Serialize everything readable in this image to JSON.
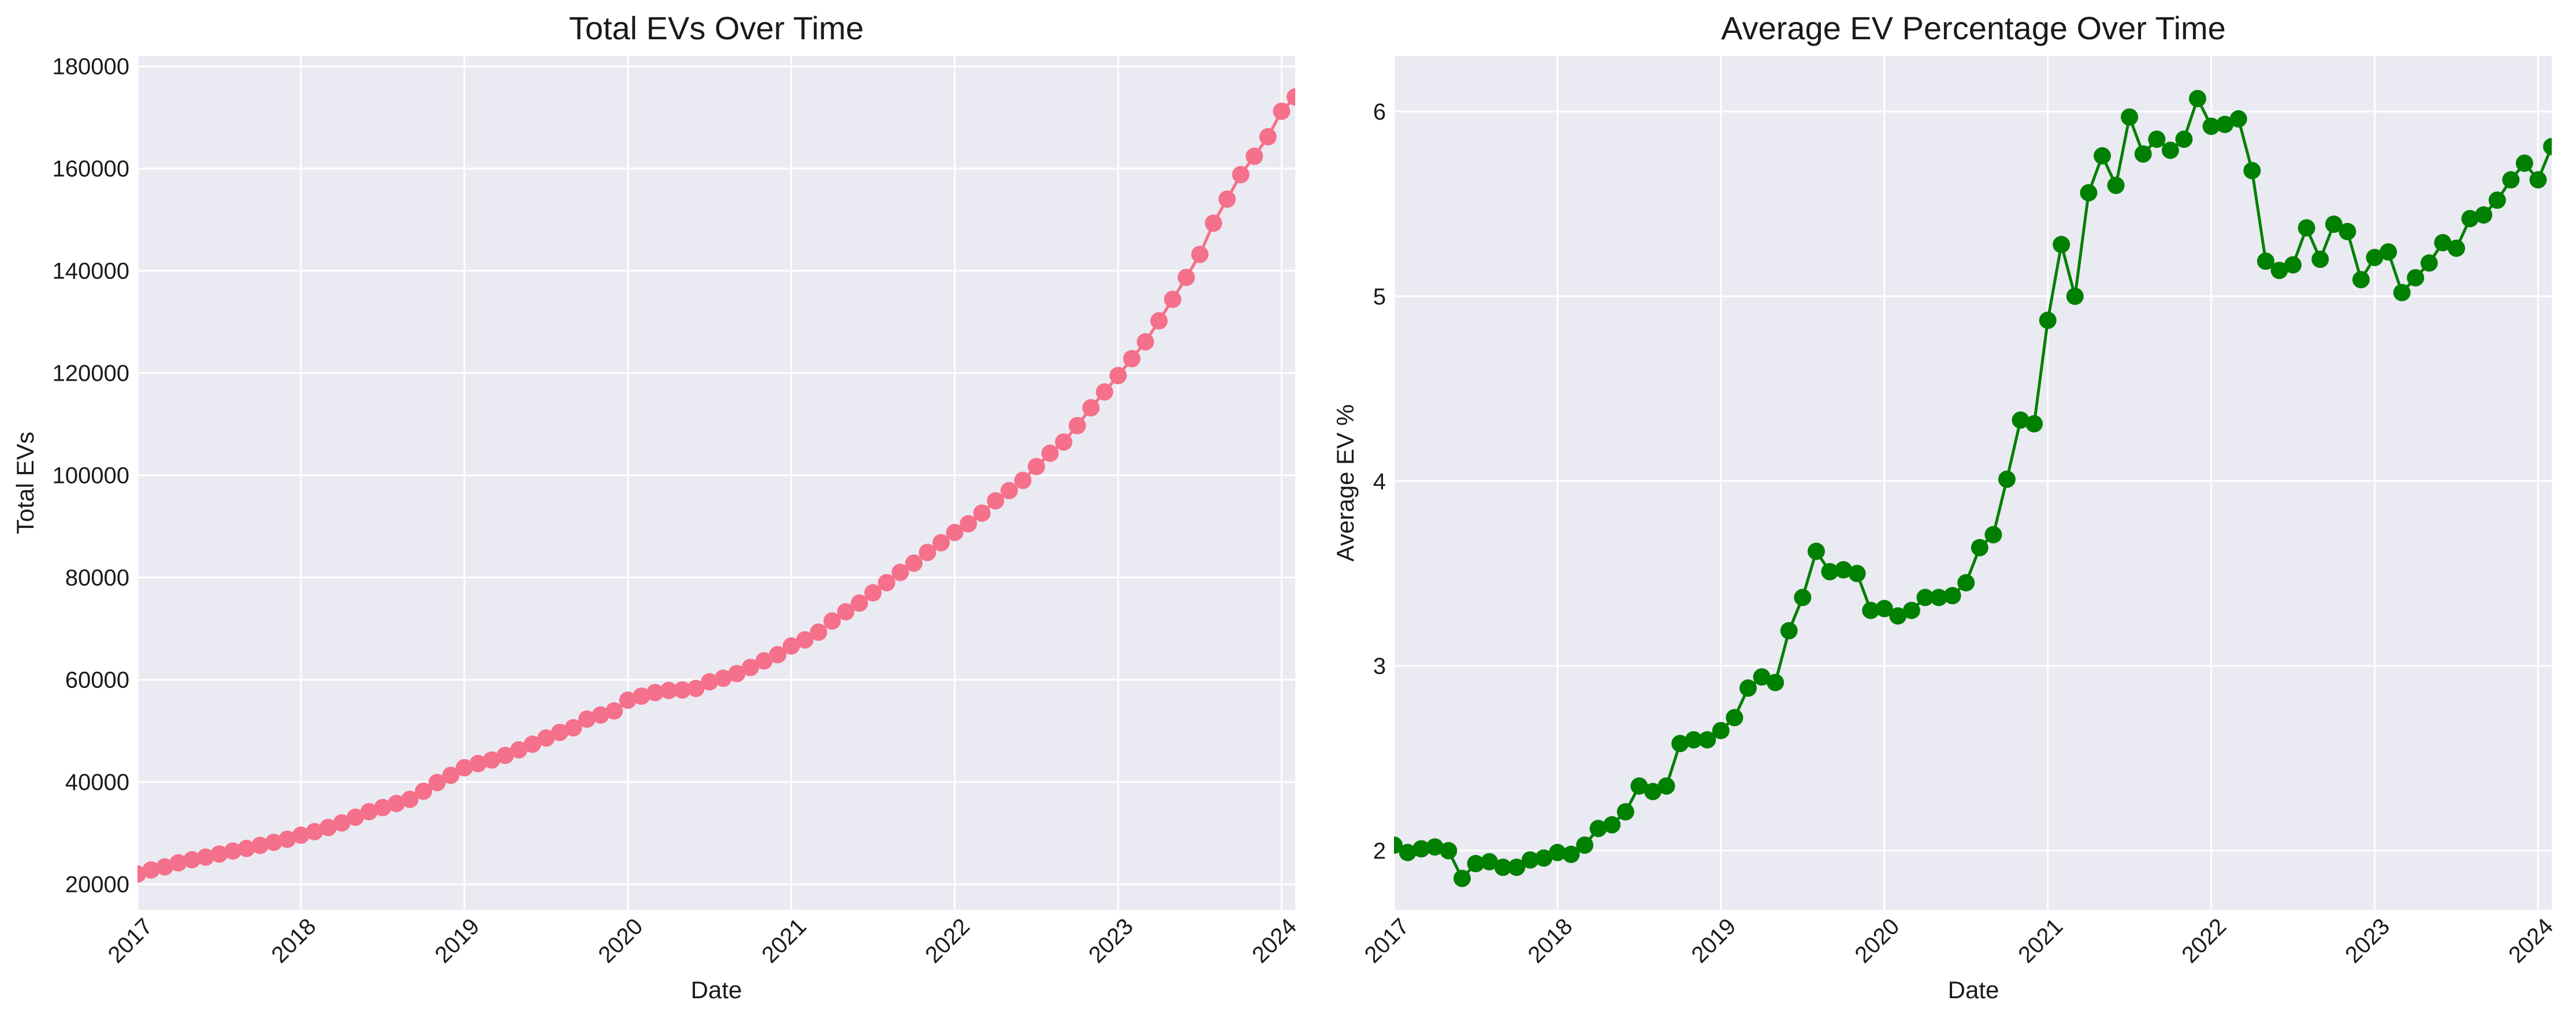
{
  "colors": {
    "figure_bg": "#ffffff",
    "plot_bg": "#eaeaf2",
    "grid": "#ffffff",
    "text": "#1a1a1a",
    "series_left": "#f5708a",
    "series_right": "#008000"
  },
  "chart_data": [
    {
      "type": "line",
      "title": "Total EVs Over Time",
      "xlabel": "Date",
      "ylabel": "Total EVs",
      "x_ticks": [
        "2017",
        "2018",
        "2019",
        "2020",
        "2021",
        "2022",
        "2023",
        "2024"
      ],
      "y_ticks": [
        "20000",
        "40000",
        "60000",
        "80000",
        "100000",
        "120000",
        "140000",
        "160000",
        "180000"
      ],
      "xlim": [
        "2017-01",
        "2024-02"
      ],
      "ylim": [
        15000,
        182000
      ],
      "grid": true,
      "marker": "circle",
      "series": [
        {
          "x": [
            "2017-01",
            "2017-02",
            "2017-03",
            "2017-04",
            "2017-05",
            "2017-06",
            "2017-07",
            "2017-08",
            "2017-09",
            "2017-10",
            "2017-11",
            "2017-12",
            "2018-01",
            "2018-02",
            "2018-03",
            "2018-04",
            "2018-05",
            "2018-06",
            "2018-07",
            "2018-08",
            "2018-09",
            "2018-10",
            "2018-11",
            "2018-12",
            "2019-01",
            "2019-02",
            "2019-03",
            "2019-04",
            "2019-05",
            "2019-06",
            "2019-07",
            "2019-08",
            "2019-09",
            "2019-10",
            "2019-11",
            "2019-12",
            "2020-01",
            "2020-02",
            "2020-03",
            "2020-04",
            "2020-05",
            "2020-06",
            "2020-07",
            "2020-08",
            "2020-09",
            "2020-10",
            "2020-11",
            "2020-12",
            "2021-01",
            "2021-02",
            "2021-03",
            "2021-04",
            "2021-05",
            "2021-06",
            "2021-07",
            "2021-08",
            "2021-09",
            "2021-10",
            "2021-11",
            "2021-12",
            "2022-01",
            "2022-02",
            "2022-03",
            "2022-04",
            "2022-05",
            "2022-06",
            "2022-07",
            "2022-08",
            "2022-09",
            "2022-10",
            "2022-11",
            "2022-12",
            "2023-01",
            "2023-02",
            "2023-03",
            "2023-04",
            "2023-05",
            "2023-06",
            "2023-07",
            "2023-08",
            "2023-09",
            "2023-10",
            "2023-11",
            "2023-12",
            "2024-01",
            "2024-02"
          ],
          "y": [
            22000,
            22800,
            23400,
            24200,
            24800,
            25300,
            25900,
            26500,
            27000,
            27600,
            28200,
            28800,
            29600,
            30300,
            31100,
            32000,
            33100,
            34200,
            35000,
            35800,
            36600,
            38200,
            39900,
            41300,
            42800,
            43600,
            44300,
            45200,
            46300,
            47400,
            48600,
            49700,
            50600,
            52300,
            53100,
            53900,
            56000,
            56800,
            57500,
            57900,
            58000,
            58300,
            59600,
            60300,
            61200,
            62400,
            63700,
            64900,
            66600,
            67800,
            69300,
            71500,
            73300,
            75000,
            77000,
            79000,
            81000,
            82800,
            84900,
            86800,
            88800,
            90500,
            92600,
            95000,
            97000,
            99000,
            101700,
            104300,
            106500,
            109700,
            113200,
            116300,
            119500,
            122800,
            126100,
            130200,
            134400,
            138700,
            143200,
            149300,
            154000,
            158800,
            162400,
            166200,
            171200,
            174000
          ]
        }
      ]
    },
    {
      "type": "line",
      "title": "Average EV Percentage Over Time",
      "xlabel": "Date",
      "ylabel": "Average EV %",
      "x_ticks": [
        "2017",
        "2018",
        "2019",
        "2020",
        "2021",
        "2022",
        "2023",
        "2024"
      ],
      "y_ticks": [
        "2",
        "3",
        "4",
        "5",
        "6"
      ],
      "xlim": [
        "2017-01",
        "2024-02"
      ],
      "ylim": [
        1.68,
        6.3
      ],
      "grid": true,
      "marker": "circle",
      "series": [
        {
          "x": [
            "2017-01",
            "2017-02",
            "2017-03",
            "2017-04",
            "2017-05",
            "2017-06",
            "2017-07",
            "2017-08",
            "2017-09",
            "2017-10",
            "2017-11",
            "2017-12",
            "2018-01",
            "2018-02",
            "2018-03",
            "2018-04",
            "2018-05",
            "2018-06",
            "2018-07",
            "2018-08",
            "2018-09",
            "2018-10",
            "2018-11",
            "2018-12",
            "2019-01",
            "2019-02",
            "2019-03",
            "2019-04",
            "2019-05",
            "2019-06",
            "2019-07",
            "2019-08",
            "2019-09",
            "2019-10",
            "2019-11",
            "2019-12",
            "2020-01",
            "2020-02",
            "2020-03",
            "2020-04",
            "2020-05",
            "2020-06",
            "2020-07",
            "2020-08",
            "2020-09",
            "2020-10",
            "2020-11",
            "2020-12",
            "2021-01",
            "2021-02",
            "2021-03",
            "2021-04",
            "2021-05",
            "2021-06",
            "2021-07",
            "2021-08",
            "2021-09",
            "2021-10",
            "2021-11",
            "2021-12",
            "2022-01",
            "2022-02",
            "2022-03",
            "2022-04",
            "2022-05",
            "2022-06",
            "2022-07",
            "2022-08",
            "2022-09",
            "2022-10",
            "2022-11",
            "2022-12",
            "2023-01",
            "2023-02",
            "2023-03",
            "2023-04",
            "2023-05",
            "2023-06",
            "2023-07",
            "2023-08",
            "2023-09",
            "2023-10",
            "2023-11",
            "2023-12",
            "2024-01",
            "2024-02"
          ],
          "y": [
            2.03,
            1.99,
            2.01,
            2.02,
            2.0,
            1.85,
            1.93,
            1.94,
            1.91,
            1.91,
            1.95,
            1.96,
            1.99,
            1.98,
            2.03,
            2.12,
            2.14,
            2.21,
            2.35,
            2.32,
            2.35,
            2.58,
            2.6,
            2.6,
            2.65,
            2.72,
            2.88,
            2.94,
            2.91,
            3.19,
            3.37,
            3.62,
            3.51,
            3.52,
            3.5,
            3.3,
            3.31,
            3.27,
            3.3,
            3.37,
            3.37,
            3.38,
            3.45,
            3.64,
            3.71,
            4.01,
            4.33,
            4.31,
            4.87,
            5.28,
            5.0,
            5.56,
            5.76,
            5.6,
            5.97,
            5.77,
            5.85,
            5.79,
            5.85,
            6.07,
            5.92,
            5.93,
            5.96,
            5.68,
            5.19,
            5.14,
            5.17,
            5.37,
            5.2,
            5.39,
            5.35,
            5.09,
            5.21,
            5.24,
            5.02,
            5.1,
            5.18,
            5.29,
            5.26,
            5.42,
            5.44,
            5.52,
            5.63,
            5.72,
            5.63,
            5.81
          ]
        }
      ]
    }
  ]
}
